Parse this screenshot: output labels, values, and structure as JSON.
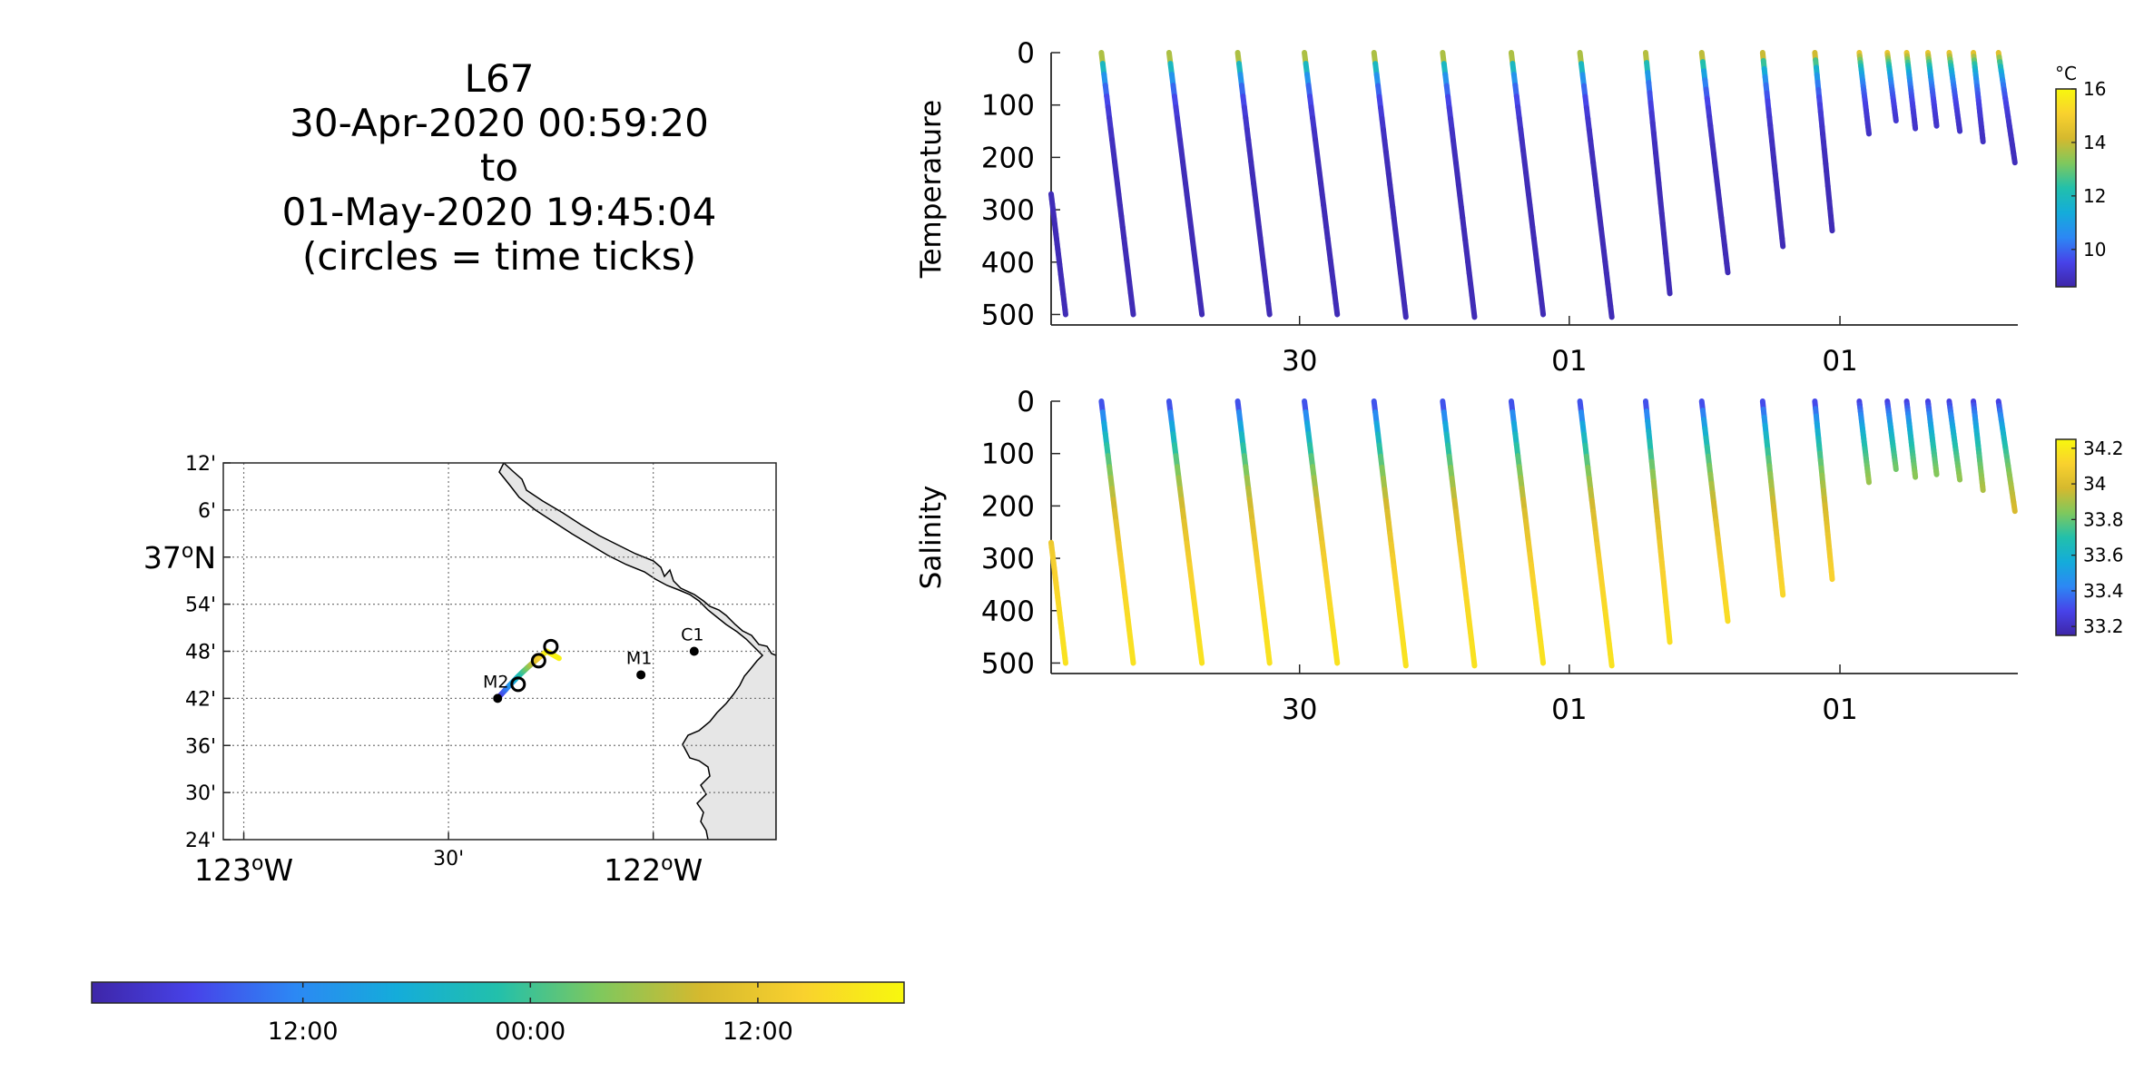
{
  "title": {
    "lines": [
      "L67",
      "30-Apr-2020 00:59:20",
      "to",
      "01-May-2020 19:45:04",
      "(circles = time ticks)"
    ]
  },
  "colors": {
    "cmap": [
      "#3e26a8",
      "#4743e9",
      "#2c88f4",
      "#14acda",
      "#22c0ab",
      "#7fc85d",
      "#d5b92e",
      "#f9d12e",
      "#f8f80d"
    ],
    "land": "#e6e6e6",
    "axis": "#262626"
  },
  "map": {
    "lat_ticks": [
      "12'",
      "6'",
      "37°N",
      "54'",
      "48'",
      "42'",
      "36'",
      "30'",
      "24'"
    ],
    "lon_ticks": [
      "123°W",
      "30'",
      "122°W"
    ],
    "stations": [
      {
        "label": "M2",
        "lon": -122.38,
        "lat": 36.7
      },
      {
        "label": "M1",
        "lon": -122.03,
        "lat": 36.75
      },
      {
        "label": "C1",
        "lon": -121.9,
        "lat": 36.8
      }
    ],
    "track": {
      "lon_start": -122.38,
      "lat_start": 36.7,
      "lon_end": -122.26,
      "lat_end": 36.8
    },
    "time_ticks": [
      "-122.33/36.73",
      "-122.28/36.78",
      "-122.25/36.81"
    ]
  },
  "time_colorbar": {
    "tick_labels": [
      "12:00",
      "00:00",
      "12:00"
    ]
  },
  "chart_data": [
    {
      "type": "scatter",
      "ylabel": "Temperature",
      "colorbar_label": "°C",
      "colorbar_ticks": [
        "16",
        "14",
        "12",
        "10"
      ],
      "clim": [
        8.6,
        16
      ],
      "ylim": [
        0,
        520
      ],
      "y_reversed": true,
      "y_ticks": [
        "0",
        "100",
        "200",
        "300",
        "400",
        "500"
      ],
      "x_ticks": [
        "30",
        "01",
        "01"
      ],
      "profiles": [
        {
          "start": 0.0,
          "end": 0.015,
          "top": 270,
          "bottom": 500
        },
        {
          "start": 0.052,
          "end": 0.085,
          "top": 0,
          "bottom": 500
        },
        {
          "start": 0.122,
          "end": 0.156,
          "top": 0,
          "bottom": 500
        },
        {
          "start": 0.193,
          "end": 0.226,
          "top": 0,
          "bottom": 500
        },
        {
          "start": 0.262,
          "end": 0.296,
          "top": 0,
          "bottom": 500
        },
        {
          "start": 0.334,
          "end": 0.367,
          "top": 0,
          "bottom": 505
        },
        {
          "start": 0.405,
          "end": 0.438,
          "top": 0,
          "bottom": 505
        },
        {
          "start": 0.476,
          "end": 0.509,
          "top": 0,
          "bottom": 500
        },
        {
          "start": 0.547,
          "end": 0.58,
          "top": 0,
          "bottom": 505
        },
        {
          "start": 0.615,
          "end": 0.64,
          "top": 0,
          "bottom": 460
        },
        {
          "start": 0.673,
          "end": 0.7,
          "top": 0,
          "bottom": 420
        },
        {
          "start": 0.736,
          "end": 0.757,
          "top": 0,
          "bottom": 370
        },
        {
          "start": 0.79,
          "end": 0.808,
          "top": 0,
          "bottom": 340
        },
        {
          "start": 0.836,
          "end": 0.846,
          "top": 0,
          "bottom": 155
        },
        {
          "start": 0.865,
          "end": 0.874,
          "top": 0,
          "bottom": 130
        },
        {
          "start": 0.885,
          "end": 0.894,
          "top": 0,
          "bottom": 145
        },
        {
          "start": 0.907,
          "end": 0.916,
          "top": 0,
          "bottom": 140
        },
        {
          "start": 0.929,
          "end": 0.94,
          "top": 0,
          "bottom": 150
        },
        {
          "start": 0.954,
          "end": 0.964,
          "top": 0,
          "bottom": 170
        },
        {
          "start": 0.98,
          "end": 0.997,
          "top": 0,
          "bottom": 210
        }
      ]
    },
    {
      "type": "scatter",
      "ylabel": "Salinity",
      "colorbar_label": "",
      "colorbar_ticks": [
        "34.2",
        "34",
        "33.8",
        "33.6",
        "33.4",
        "33.2"
      ],
      "clim": [
        33.15,
        34.25
      ],
      "ylim": [
        0,
        520
      ],
      "y_reversed": true,
      "y_ticks": [
        "0",
        "100",
        "200",
        "300",
        "400",
        "500"
      ],
      "x_ticks": [
        "30",
        "01",
        "01"
      ],
      "profiles": [
        {
          "start": 0.0,
          "end": 0.015,
          "top": 270,
          "bottom": 500
        },
        {
          "start": 0.052,
          "end": 0.085,
          "top": 0,
          "bottom": 500
        },
        {
          "start": 0.122,
          "end": 0.156,
          "top": 0,
          "bottom": 500
        },
        {
          "start": 0.193,
          "end": 0.226,
          "top": 0,
          "bottom": 500
        },
        {
          "start": 0.262,
          "end": 0.296,
          "top": 0,
          "bottom": 500
        },
        {
          "start": 0.334,
          "end": 0.367,
          "top": 0,
          "bottom": 505
        },
        {
          "start": 0.405,
          "end": 0.438,
          "top": 0,
          "bottom": 505
        },
        {
          "start": 0.476,
          "end": 0.509,
          "top": 0,
          "bottom": 500
        },
        {
          "start": 0.547,
          "end": 0.58,
          "top": 0,
          "bottom": 505
        },
        {
          "start": 0.615,
          "end": 0.64,
          "top": 0,
          "bottom": 460
        },
        {
          "start": 0.673,
          "end": 0.7,
          "top": 0,
          "bottom": 420
        },
        {
          "start": 0.736,
          "end": 0.757,
          "top": 0,
          "bottom": 370
        },
        {
          "start": 0.79,
          "end": 0.808,
          "top": 0,
          "bottom": 340
        },
        {
          "start": 0.836,
          "end": 0.846,
          "top": 0,
          "bottom": 155
        },
        {
          "start": 0.865,
          "end": 0.874,
          "top": 0,
          "bottom": 130
        },
        {
          "start": 0.885,
          "end": 0.894,
          "top": 0,
          "bottom": 145
        },
        {
          "start": 0.907,
          "end": 0.916,
          "top": 0,
          "bottom": 140
        },
        {
          "start": 0.929,
          "end": 0.94,
          "top": 0,
          "bottom": 150
        },
        {
          "start": 0.954,
          "end": 0.964,
          "top": 0,
          "bottom": 170
        },
        {
          "start": 0.98,
          "end": 0.997,
          "top": 0,
          "bottom": 210
        }
      ]
    }
  ]
}
